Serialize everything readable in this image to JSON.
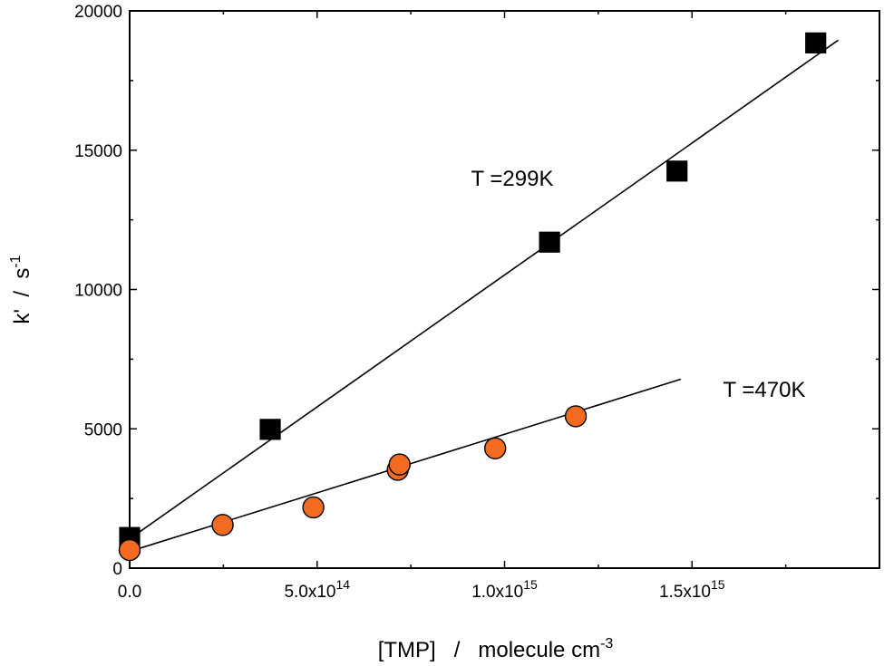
{
  "chart_data": {
    "type": "scatter",
    "title": "",
    "xlabel": {
      "base": "[TMP]   /   molecule cm",
      "sup": "-3"
    },
    "ylabel": {
      "base": "k'  /  s",
      "sup": "-1"
    },
    "xlim": [
      0,
      2000000000000000.0
    ],
    "ylim": [
      0,
      20000
    ],
    "grid": false,
    "x_ticks": [
      {
        "value": 0,
        "mantissa": "0.0",
        "exp": ""
      },
      {
        "value": 500000000000000.0,
        "mantissa": "5.0x10",
        "exp": "14"
      },
      {
        "value": 1000000000000000.0,
        "mantissa": "1.0x10",
        "exp": "15"
      },
      {
        "value": 1500000000000000.0,
        "mantissa": "1.5x10",
        "exp": "15"
      }
    ],
    "y_ticks": [
      {
        "value": 0,
        "label": "0"
      },
      {
        "value": 5000,
        "label": "5000"
      },
      {
        "value": 10000,
        "label": "10000"
      },
      {
        "value": 15000,
        "label": "15000"
      },
      {
        "value": 20000,
        "label": "20000"
      }
    ],
    "series": [
      {
        "annotation": "T =299K",
        "marker": "square",
        "color": "#000000",
        "points": [
          {
            "x": 0.0,
            "y": 1100
          },
          {
            "x": 375000000000000.0,
            "y": 4980
          },
          {
            "x": 1120000000000000.0,
            "y": 11700
          },
          {
            "x": 1460000000000000.0,
            "y": 14250
          },
          {
            "x": 1830000000000000.0,
            "y": 18850
          }
        ],
        "fit_line": {
          "x": [
            0.0,
            1890000000000000.0
          ],
          "y": [
            1050,
            18950
          ]
        }
      },
      {
        "annotation": "T =470K",
        "marker": "circle",
        "color": "#f26b21",
        "points": [
          {
            "x": 0.0,
            "y": 650
          },
          {
            "x": 248000000000000.0,
            "y": 1550
          },
          {
            "x": 490000000000000.0,
            "y": 2180
          },
          {
            "x": 715000000000000.0,
            "y": 3530
          },
          {
            "x": 720000000000000.0,
            "y": 3720
          },
          {
            "x": 975000000000000.0,
            "y": 4300
          },
          {
            "x": 1190000000000000.0,
            "y": 5450
          }
        ],
        "fit_line": {
          "x": [
            0.0,
            1470000000000000.0
          ],
          "y": [
            600,
            6780
          ]
        }
      }
    ]
  }
}
